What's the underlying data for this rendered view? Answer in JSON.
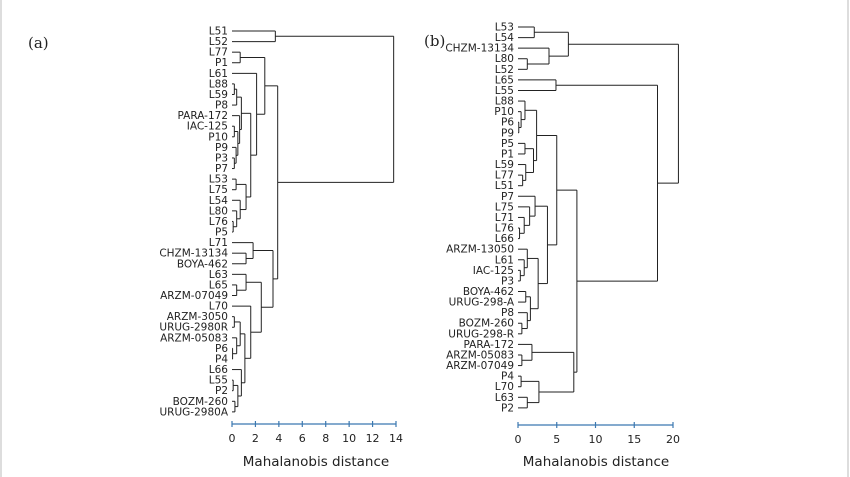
{
  "chart_data": [
    {
      "type": "dendrogram",
      "panel_label": "(a)",
      "xlabel": "Mahalanobis distance",
      "xlim": [
        0,
        14
      ],
      "xticks": [
        0,
        2,
        4,
        6,
        8,
        10,
        12,
        14
      ],
      "axis_color": "#3b78b0",
      "tree": {
        "h": 13.8,
        "c": [
          {
            "h": 3.7,
            "c": [
              "L51",
              "L52"
            ]
          },
          {
            "h": 3.9,
            "c": [
              {
                "h": 2.8,
                "c": [
                  {
                    "h": 0.7,
                    "c": [
                      "L77",
                      "P1"
                    ]
                  },
                  {
                    "h": 2.1,
                    "c": [
                      "L61",
                      {
                        "h": 1.6,
                        "c": [
                          {
                            "h": 0.8,
                            "c": [
                              {
                                "h": 0.4,
                                "c": [
                                  {
                                    "h": 0.2,
                                    "c": [
                                      "L88",
                                      "L59"
                                    ]
                                  },
                                  "P8"
                                ]
                              },
                              {
                                "h": 0.65,
                                "c": [
                                  "PARA-172",
                                  {
                                    "h": 0.5,
                                    "c": [
                                      {
                                        "h": 0.2,
                                        "c": [
                                          "IAC-125",
                                          "P10"
                                        ]
                                      },
                                      {
                                        "h": 0.35,
                                        "c": [
                                          "P9",
                                          {
                                            "h": 0.2,
                                            "c": [
                                              "P3",
                                              "P7"
                                            ]
                                          }
                                        ]
                                      }
                                    ]
                                  }
                                ]
                              }
                            ]
                          },
                          {
                            "h": 1.2,
                            "c": [
                              {
                                "h": 0.35,
                                "c": [
                                  "L53",
                                  "L75"
                                ]
                              },
                              {
                                "h": 0.7,
                                "c": [
                                  "L54",
                                  {
                                    "h": 0.4,
                                    "c": [
                                      "L80",
                                      {
                                        "h": 0.1,
                                        "c": [
                                          "L76",
                                          "P5"
                                        ]
                                      }
                                    ]
                                  }
                                ]
                              }
                            ]
                          }
                        ]
                      }
                    ]
                  }
                ]
              },
              {
                "h": 3.5,
                "c": [
                  {
                    "h": 1.8,
                    "c": [
                      "L71",
                      {
                        "h": 1.2,
                        "c": [
                          "CHZM-13134",
                          "BOYA-462"
                        ]
                      }
                    ]
                  },
                  {
                    "h": 2.5,
                    "c": [
                      {
                        "h": 1.2,
                        "c": [
                          "L63",
                          {
                            "h": 0.4,
                            "c": [
                              "L65",
                              "ARZM-07049"
                            ]
                          }
                        ]
                      },
                      {
                        "h": 1.6,
                        "c": [
                          "L70",
                          {
                            "h": 1.1,
                            "c": [
                              {
                                "h": 0.7,
                                "c": [
                                  {
                                    "h": 0.2,
                                    "c": [
                                      "ARZM-3050",
                                      "URUG-2980R"
                                    ]
                                  },
                                  {
                                    "h": 0.4,
                                    "c": [
                                      "ARZM-05083",
                                      {
                                        "h": 0.05,
                                        "c": [
                                          "P6",
                                          "P4"
                                        ]
                                      }
                                    ]
                                  }
                                ]
                              },
                              {
                                "h": 0.8,
                                "c": [
                                  "L66",
                                  {
                                    "h": 0.5,
                                    "c": [
                                      {
                                        "h": 0.1,
                                        "c": [
                                          "L55",
                                          "P2"
                                        ]
                                      },
                                      {
                                        "h": 0.25,
                                        "c": [
                                          "BOZM-260",
                                          "URUG-2980A"
                                        ]
                                      }
                                    ]
                                  }
                                ]
                              }
                            ]
                          }
                        ]
                      }
                    ]
                  }
                ]
              }
            ]
          }
        ]
      }
    },
    {
      "type": "dendrogram",
      "panel_label": "(b)",
      "xlabel": "Mahalanobis distance",
      "xlim": [
        0,
        20
      ],
      "xticks": [
        0,
        5,
        10,
        15,
        20
      ],
      "axis_color": "#3b78b0",
      "tree": {
        "h": 20.7,
        "c": [
          {
            "h": 6.5,
            "c": [
              {
                "h": 2.1,
                "c": [
                  "L53",
                  "L54"
                ]
              },
              {
                "h": 4.0,
                "c": [
                  "CHZM-13134",
                  {
                    "h": 1.2,
                    "c": [
                      "L80",
                      "L52"
                    ]
                  }
                ]
              }
            ]
          },
          {
            "h": 18.0,
            "c": [
              {
                "h": 4.9,
                "c": [
                  "L65",
                  "L55"
                ]
              },
              {
                "h": 7.6,
                "c": [
                  {
                    "h": 5.0,
                    "c": [
                      {
                        "h": 2.4,
                        "c": [
                          {
                            "h": 0.9,
                            "c": [
                              "L88",
                              {
                                "h": 0.4,
                                "c": [
                                  "P10",
                                  {
                                    "h": 0.1,
                                    "c": [
                                      "P6",
                                      "P9"
                                    ]
                                  }
                                ]
                              }
                            ]
                          },
                          {
                            "h": 2.0,
                            "c": [
                              {
                                "h": 0.9,
                                "c": [
                                  "P5",
                                  "P1"
                                ]
                              },
                              {
                                "h": 1.0,
                                "c": [
                                  "L59",
                                  {
                                    "h": 0.6,
                                    "c": [
                                      "L77",
                                      "L51"
                                    ]
                                  }
                                ]
                              }
                            ]
                          }
                        ]
                      },
                      {
                        "h": 3.8,
                        "c": [
                          {
                            "h": 2.2,
                            "c": [
                              "P7",
                              {
                                "h": 1.5,
                                "c": [
                                  "L75",
                                  {
                                    "h": 0.8,
                                    "c": [
                                      "L71",
                                      {
                                        "h": 0.2,
                                        "c": [
                                          "L76",
                                          "L66"
                                        ]
                                      }
                                    ]
                                  }
                                ]
                              }
                            ]
                          },
                          {
                            "h": 2.6,
                            "c": [
                              {
                                "h": 1.2,
                                "c": [
                                  "ARZM-13050",
                                  {
                                    "h": 0.8,
                                    "c": [
                                      "L61",
                                      {
                                        "h": 0.3,
                                        "c": [
                                          "IAC-125",
                                          "P3"
                                        ]
                                      }
                                    ]
                                  }
                                ]
                              },
                              {
                                "h": 1.6,
                                "c": [
                                  {
                                    "h": 1.0,
                                    "c": [
                                      "BOYA-462",
                                      "URUG-298-A"
                                    ]
                                  },
                                  {
                                    "h": 1.2,
                                    "c": [
                                      "P8",
                                      {
                                        "h": 0.5,
                                        "c": [
                                          "BOZM-260",
                                          "URUG-298-R"
                                        ]
                                      }
                                    ]
                                  }
                                ]
                              }
                            ]
                          }
                        ]
                      }
                    ]
                  },
                  {
                    "h": 7.2,
                    "c": [
                      {
                        "h": 1.8,
                        "c": [
                          "PARA-172",
                          {
                            "h": 0.5,
                            "c": [
                              "ARZM-05083",
                              "ARZM-07049"
                            ]
                          }
                        ]
                      },
                      {
                        "h": 2.7,
                        "c": [
                          {
                            "h": 0.4,
                            "c": [
                              "P4",
                              "L70"
                            ]
                          },
                          {
                            "h": 1.2,
                            "c": [
                              "L63",
                              "P2"
                            ]
                          }
                        ]
                      }
                    ]
                  }
                ]
              }
            ]
          }
        ]
      }
    }
  ]
}
